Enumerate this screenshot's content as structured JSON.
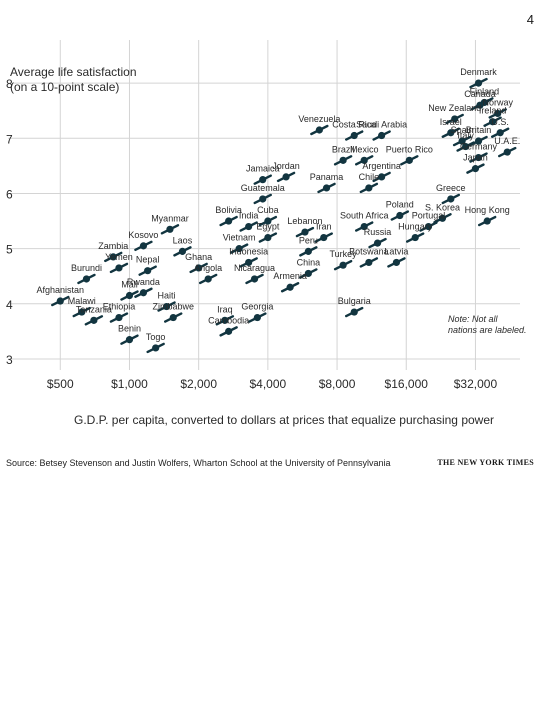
{
  "page_number": "4",
  "source": "Source: Betsey Stevenson and Justin Wolfers, Wharton School at the University of Pennsylvania",
  "credit": "THE NEW YORK TIMES",
  "colors": {
    "dot": "#123540",
    "grid": "#d4d4d4",
    "text": "#2a2a2a"
  },
  "chart_data": {
    "type": "scatter",
    "title": "",
    "ylabel": "Average life satisfaction\n(on a 10-point scale)",
    "xlabel": "G.D.P. per capita, converted to dollars at prices that equalize purchasing power",
    "xscale": "log",
    "xlim": [
      400,
      50000
    ],
    "ylim": [
      2.8,
      8.6
    ],
    "xticks": [
      500,
      1000,
      2000,
      4000,
      8000,
      16000,
      32000
    ],
    "xtick_labels": [
      "$500",
      "$1,000",
      "$2,000",
      "$4,000",
      "$8,000",
      "$16,000",
      "$32,000"
    ],
    "yticks": [
      3,
      4,
      5,
      6,
      7,
      8
    ],
    "ytick_labels": [
      "3",
      "4",
      "5",
      "6",
      "7",
      "8"
    ],
    "grid": true,
    "note": "Note: Not all nations are labeled.",
    "labeled_points": [
      {
        "name": "Denmark",
        "x": 33000,
        "y": 8.0
      },
      {
        "name": "Canada",
        "x": 33500,
        "y": 7.6
      },
      {
        "name": "Finland",
        "x": 35000,
        "y": 7.65
      },
      {
        "name": "Norway",
        "x": 40000,
        "y": 7.45
      },
      {
        "name": "Ireland",
        "x": 38000,
        "y": 7.3
      },
      {
        "name": "U.S.",
        "x": 41000,
        "y": 7.1
      },
      {
        "name": "New Zealand",
        "x": 26000,
        "y": 7.35
      },
      {
        "name": "Israel",
        "x": 25000,
        "y": 7.1
      },
      {
        "name": "Spain",
        "x": 28000,
        "y": 6.95
      },
      {
        "name": "Italy",
        "x": 29000,
        "y": 6.85
      },
      {
        "name": "Britain",
        "x": 33000,
        "y": 6.95
      },
      {
        "name": "Germany",
        "x": 33000,
        "y": 6.65
      },
      {
        "name": "Japan",
        "x": 32000,
        "y": 6.45
      },
      {
        "name": "U.A.E.",
        "x": 44000,
        "y": 6.75
      },
      {
        "name": "Greece",
        "x": 25000,
        "y": 5.9
      },
      {
        "name": "S. Korea",
        "x": 23000,
        "y": 5.55
      },
      {
        "name": "Hong Kong",
        "x": 36000,
        "y": 5.5
      },
      {
        "name": "Portugal",
        "x": 20000,
        "y": 5.4
      },
      {
        "name": "Hungary",
        "x": 17500,
        "y": 5.2
      },
      {
        "name": "Poland",
        "x": 15000,
        "y": 5.6
      },
      {
        "name": "Latvia",
        "x": 14500,
        "y": 4.75
      },
      {
        "name": "Russia",
        "x": 12000,
        "y": 5.1
      },
      {
        "name": "Botswana",
        "x": 11000,
        "y": 4.75
      },
      {
        "name": "Bulgaria",
        "x": 9500,
        "y": 3.85
      },
      {
        "name": "Turkey",
        "x": 8500,
        "y": 4.7
      },
      {
        "name": "South Africa",
        "x": 10500,
        "y": 5.4
      },
      {
        "name": "Puerto Rico",
        "x": 16500,
        "y": 6.6
      },
      {
        "name": "Costa Rica",
        "x": 9500,
        "y": 7.05
      },
      {
        "name": "Saudi Arabia",
        "x": 12500,
        "y": 7.05
      },
      {
        "name": "Mexico",
        "x": 10500,
        "y": 6.6
      },
      {
        "name": "Argentina",
        "x": 12500,
        "y": 6.3
      },
      {
        "name": "Chile",
        "x": 11000,
        "y": 6.1
      },
      {
        "name": "Brazil",
        "x": 8500,
        "y": 6.6
      },
      {
        "name": "Venezuela",
        "x": 6700,
        "y": 7.15
      },
      {
        "name": "Panama",
        "x": 7200,
        "y": 6.1
      },
      {
        "name": "Jordan",
        "x": 4800,
        "y": 6.3
      },
      {
        "name": "Jamaica",
        "x": 3800,
        "y": 6.25
      },
      {
        "name": "Guatemala",
        "x": 3800,
        "y": 5.9
      },
      {
        "name": "Bolivia",
        "x": 2700,
        "y": 5.5
      },
      {
        "name": "India",
        "x": 3300,
        "y": 5.4
      },
      {
        "name": "Cuba",
        "x": 4000,
        "y": 5.5
      },
      {
        "name": "Egypt",
        "x": 4000,
        "y": 5.2
      },
      {
        "name": "Vietnam",
        "x": 3000,
        "y": 5.0
      },
      {
        "name": "Lebanon",
        "x": 5800,
        "y": 5.3
      },
      {
        "name": "Iran",
        "x": 7000,
        "y": 5.2
      },
      {
        "name": "Peru",
        "x": 6000,
        "y": 4.95
      },
      {
        "name": "China",
        "x": 6000,
        "y": 4.55
      },
      {
        "name": "Indonesia",
        "x": 3300,
        "y": 4.75
      },
      {
        "name": "Armenia",
        "x": 5000,
        "y": 4.3
      },
      {
        "name": "Nicaragua",
        "x": 3500,
        "y": 4.45
      },
      {
        "name": "Angola",
        "x": 2200,
        "y": 4.45
      },
      {
        "name": "Ghana",
        "x": 2000,
        "y": 4.65
      },
      {
        "name": "Laos",
        "x": 1700,
        "y": 4.95
      },
      {
        "name": "Myanmar",
        "x": 1500,
        "y": 5.35
      },
      {
        "name": "Kosovo",
        "x": 1150,
        "y": 5.05
      },
      {
        "name": "Zambia",
        "x": 850,
        "y": 4.85
      },
      {
        "name": "Yemen",
        "x": 900,
        "y": 4.65
      },
      {
        "name": "Nepal",
        "x": 1200,
        "y": 4.6
      },
      {
        "name": "Burundi",
        "x": 650,
        "y": 4.45
      },
      {
        "name": "Afghanistan",
        "x": 500,
        "y": 4.05
      },
      {
        "name": "Mali",
        "x": 1000,
        "y": 4.15
      },
      {
        "name": "Rwanda",
        "x": 1150,
        "y": 4.2
      },
      {
        "name": "Haiti",
        "x": 1450,
        "y": 3.95
      },
      {
        "name": "Malawi",
        "x": 620,
        "y": 3.85
      },
      {
        "name": "Tanzania",
        "x": 700,
        "y": 3.7
      },
      {
        "name": "Ethiopia",
        "x": 900,
        "y": 3.75
      },
      {
        "name": "Zimbabwe",
        "x": 1550,
        "y": 3.75
      },
      {
        "name": "Benin",
        "x": 1000,
        "y": 3.35
      },
      {
        "name": "Togo",
        "x": 1300,
        "y": 3.2
      },
      {
        "name": "Iraq",
        "x": 2600,
        "y": 3.7
      },
      {
        "name": "Georgia",
        "x": 3600,
        "y": 3.75
      },
      {
        "name": "Cambodia",
        "x": 2700,
        "y": 3.5
      }
    ]
  }
}
